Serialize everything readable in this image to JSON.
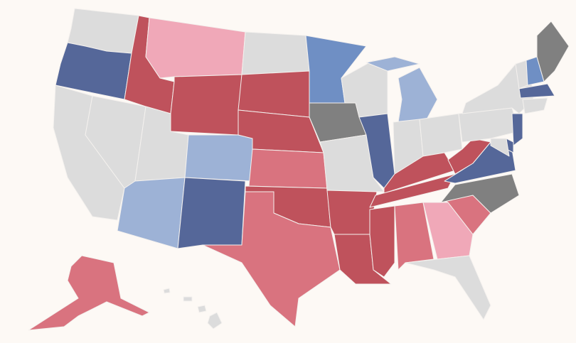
{
  "map": {
    "background": "#fdf9f5",
    "border_color": "#f4f1ee",
    "palette": [
      "#dcdcdc",
      "#bf525c",
      "#d9737f",
      "#f0a8b8",
      "#556799",
      "#6f8fc4",
      "#9db2d6",
      "#808080"
    ]
  }
}
